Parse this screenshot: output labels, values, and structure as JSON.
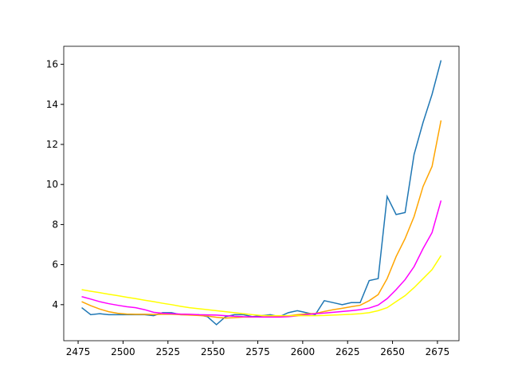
{
  "chart_data": {
    "type": "line",
    "x": [
      2477,
      2482,
      2487,
      2492,
      2497,
      2502,
      2507,
      2512,
      2517,
      2522,
      2527,
      2532,
      2537,
      2542,
      2547,
      2552,
      2557,
      2562,
      2567,
      2572,
      2577,
      2582,
      2587,
      2592,
      2597,
      2602,
      2607,
      2612,
      2617,
      2622,
      2627,
      2632,
      2637,
      2642,
      2647,
      2652,
      2657,
      2662,
      2667,
      2672,
      2677
    ],
    "series": [
      {
        "color": "#1f77b4",
        "values": [
          3.85,
          3.5,
          3.55,
          3.5,
          3.5,
          3.5,
          3.5,
          3.5,
          3.45,
          3.6,
          3.6,
          3.5,
          3.5,
          3.5,
          3.4,
          3.0,
          3.4,
          3.5,
          3.5,
          3.4,
          3.45,
          3.5,
          3.4,
          3.6,
          3.7,
          3.6,
          3.5,
          4.2,
          4.1,
          4.0,
          4.1,
          4.1,
          5.2,
          5.3,
          9.4,
          8.5,
          8.6,
          11.5,
          13.1,
          14.5,
          16.2
        ]
      },
      {
        "color": "orange",
        "values": [
          4.15,
          3.95,
          3.78,
          3.65,
          3.57,
          3.53,
          3.52,
          3.52,
          3.51,
          3.52,
          3.52,
          3.5,
          3.48,
          3.46,
          3.43,
          3.37,
          3.33,
          3.35,
          3.38,
          3.38,
          3.39,
          3.4,
          3.4,
          3.44,
          3.5,
          3.54,
          3.56,
          3.66,
          3.75,
          3.82,
          3.9,
          3.97,
          4.2,
          4.5,
          5.3,
          6.4,
          7.3,
          8.4,
          9.9,
          10.9,
          13.2
        ]
      },
      {
        "color": "magenta",
        "values": [
          4.4,
          4.28,
          4.15,
          4.05,
          3.97,
          3.9,
          3.85,
          3.75,
          3.62,
          3.57,
          3.55,
          3.53,
          3.52,
          3.5,
          3.49,
          3.48,
          3.45,
          3.42,
          3.4,
          3.39,
          3.38,
          3.38,
          3.38,
          3.4,
          3.44,
          3.5,
          3.55,
          3.58,
          3.62,
          3.66,
          3.7,
          3.75,
          3.83,
          3.98,
          4.3,
          4.75,
          5.25,
          5.9,
          6.8,
          7.6,
          9.2
        ]
      },
      {
        "color": "yellow",
        "values": [
          4.75,
          4.67,
          4.6,
          4.52,
          4.45,
          4.37,
          4.3,
          4.22,
          4.15,
          4.07,
          4.0,
          3.92,
          3.85,
          3.8,
          3.75,
          3.7,
          3.65,
          3.6,
          3.55,
          3.5,
          3.46,
          3.45,
          3.45,
          3.45,
          3.45,
          3.45,
          3.45,
          3.46,
          3.48,
          3.5,
          3.52,
          3.55,
          3.6,
          3.7,
          3.85,
          4.15,
          4.45,
          4.85,
          5.3,
          5.75,
          6.45
        ]
      }
    ],
    "xlim": [
      2467,
      2687
    ],
    "ylim": [
      2.2,
      16.9
    ],
    "xticks": [
      2475,
      2500,
      2525,
      2550,
      2575,
      2600,
      2625,
      2650,
      2675
    ],
    "yticks": [
      4,
      6,
      8,
      10,
      12,
      14,
      16
    ]
  }
}
